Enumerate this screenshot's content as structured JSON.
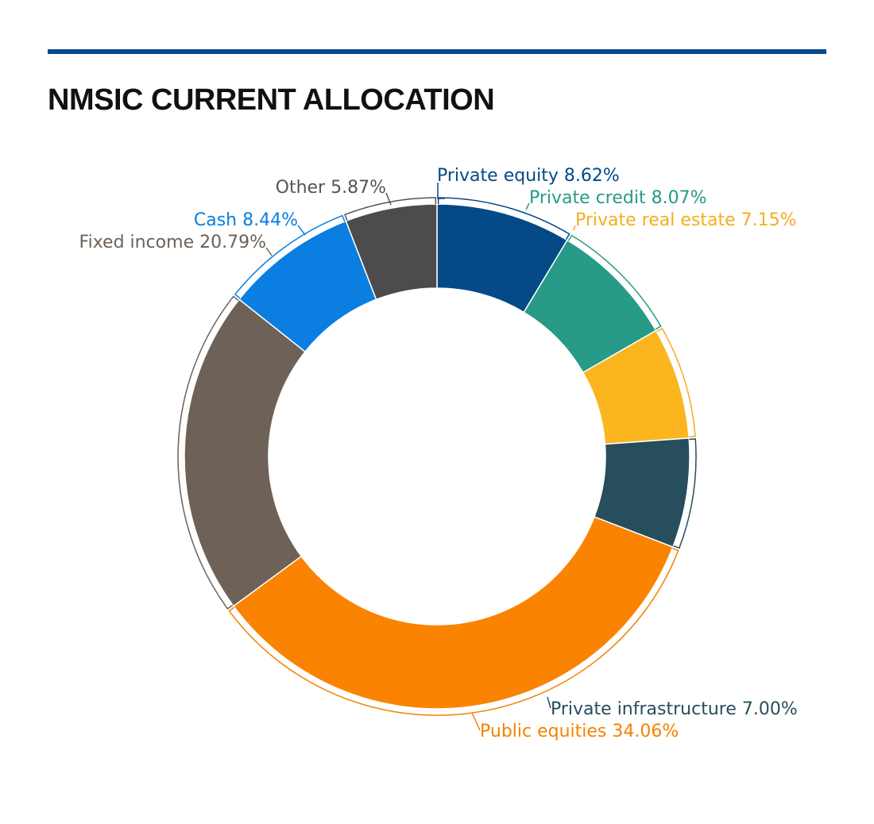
{
  "page": {
    "title": "NMSIC CURRENT ALLOCATION"
  },
  "colors": {
    "rule": "#0a4a8c",
    "title": "#111111"
  },
  "chart_data": {
    "type": "pie",
    "donut": true,
    "title": "NMSIC CURRENT ALLOCATION",
    "unit": "%",
    "slices": [
      {
        "label": "Private equity 8.62%",
        "name": "Private equity",
        "value": 8.62,
        "color": "#034a87",
        "label_color": "#034a87"
      },
      {
        "label": "Private credit 8.07%",
        "name": "Private credit",
        "value": 8.07,
        "color": "#279a88",
        "label_color": "#279a88"
      },
      {
        "label": "Private real estate 7.15%",
        "name": "Private real estate",
        "value": 7.15,
        "color": "#fbb61f",
        "label_color": "#f4ae1c"
      },
      {
        "label": "Private infrastructure 7.00%",
        "name": "Private infrastructure",
        "value": 7.0,
        "color": "#264e5c",
        "label_color": "#264e5c"
      },
      {
        "label": "Public equities 34.06%",
        "name": "Public equities",
        "value": 34.06,
        "color": "#fb8302",
        "label_color": "#f28300"
      },
      {
        "label": "Fixed income 20.79%",
        "name": "Fixed income",
        "value": 20.79,
        "color": "#6e6157",
        "label_color": "#6e6157"
      },
      {
        "label": "Cash 8.44%",
        "name": "Cash",
        "value": 8.44,
        "color": "#0a7ee1",
        "label_color": "#0a7ee1"
      },
      {
        "label": "Other 5.87%",
        "name": "Other",
        "value": 5.87,
        "color": "#4d4c4c",
        "label_color": "#555555"
      }
    ]
  }
}
